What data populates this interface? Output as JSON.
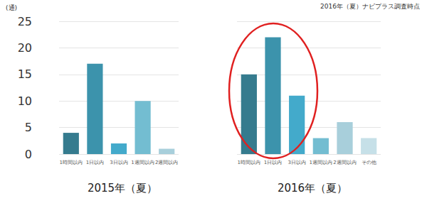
{
  "chart_data": [
    {
      "type": "bar",
      "title": "2015年（夏）",
      "ylabel": "(通)",
      "categories": [
        "1時間以内",
        "1日以内",
        "3日以内",
        "1週間以内",
        "2週間以内"
      ],
      "values": [
        4,
        17,
        2,
        10,
        1
      ],
      "colors": [
        "#357b8e",
        "#3c93ac",
        "#43aacb",
        "#73bdd1",
        "#a8cfdb"
      ],
      "ylim": [
        0,
        25
      ],
      "yticks": [
        0,
        5,
        10,
        15,
        20,
        25
      ],
      "grid": true
    },
    {
      "type": "bar",
      "title": "2016年（夏）",
      "annotation": "2016年（夏）ナビプラス調査時点",
      "categories": [
        "1時間以内",
        "1日以内",
        "3日以内",
        "1週間以内",
        "2週間以内",
        "その他"
      ],
      "values": [
        15,
        22,
        11,
        3,
        6,
        3
      ],
      "colors": [
        "#357b8e",
        "#3c93ac",
        "#43aacb",
        "#73bdd1",
        "#a8cfdb",
        "#c6e0e8"
      ],
      "ylim": [
        0,
        25
      ],
      "yticks": [
        0,
        5,
        10,
        15,
        20,
        25
      ],
      "grid": true,
      "tick_labels": "x"
    }
  ]
}
